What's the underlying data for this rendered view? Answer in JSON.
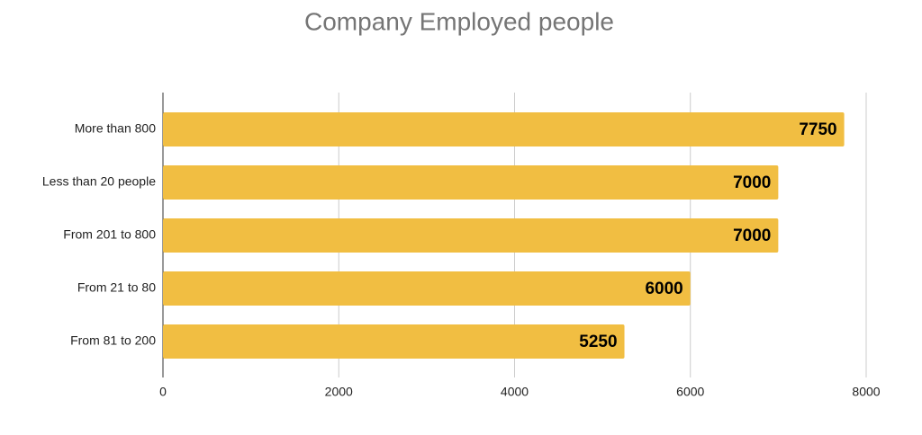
{
  "chart_data": {
    "type": "bar",
    "orientation": "horizontal",
    "title": "Company Employed people",
    "categories": [
      "More than 800",
      "Less than 20 people",
      "From 201 to 800",
      "From 21 to 80",
      "From 81 to 200"
    ],
    "values": [
      7750,
      7000,
      7000,
      6000,
      5250
    ],
    "color": "#f1be42",
    "xlim": [
      0,
      8000
    ],
    "xticks": [
      0,
      2000,
      4000,
      6000,
      8000
    ],
    "grid": true
  }
}
